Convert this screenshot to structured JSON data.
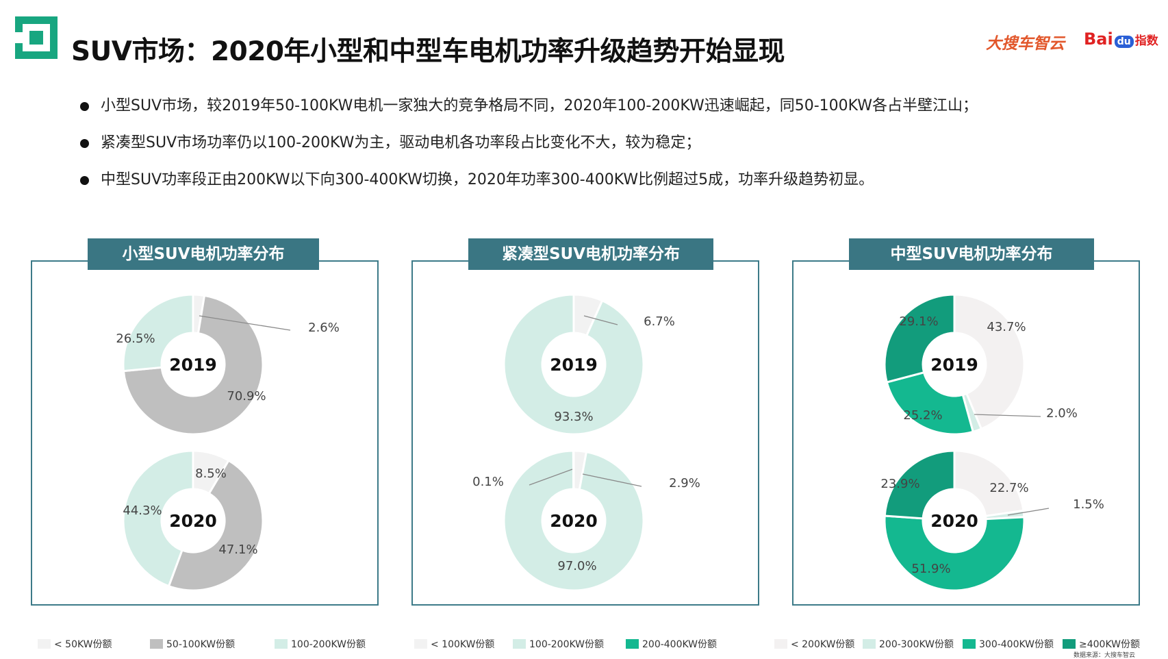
{
  "header": {
    "title": "SUV市场：2020年小型和中型车电机功率升级趋势开始显现",
    "brand_souche": "大搜车智云",
    "brand_baidu": {
      "bai": "Bai",
      "du": "du",
      "zs": "指数"
    }
  },
  "bullets": [
    "小型SUV市场，较2019年50-100KW电机一家独大的竞争格局不同，2020年100-200KW迅速崛起，同50-100KW各占半壁江山；",
    "紧凑型SUV市场功率仍以100-200KW为主，驱动电机各功率段占比变化不大，较为稳定；",
    "中型SUV功率段正由200KW以下向300-400KW切换，2020年功率300-400KW比例超过5成，功率升级趋势初显。"
  ],
  "colors": {
    "panel_border": "#3c7a88",
    "panel_title_bg": "#3a7683",
    "title_text": "#111111",
    "logo_green": "#18a680",
    "brand_orange": "#e2572b",
    "brand_red": "#e02222",
    "brand_blue": "#2a5fd6"
  },
  "chart_data": [
    {
      "type": "pie",
      "title": "小型SUV电机功率分布",
      "series": [
        {
          "name": "2019",
          "values": [
            2.6,
            70.9,
            26.5
          ],
          "labels": [
            "2.6%",
            "70.9%",
            "26.5%"
          ]
        },
        {
          "name": "2020",
          "values": [
            8.5,
            47.1,
            44.3
          ],
          "labels": [
            "8.5%",
            "47.1%",
            "44.3%"
          ]
        }
      ],
      "legend": [
        {
          "name": "< 50KW份额",
          "color": "#f2f2f2"
        },
        {
          "name": "50-100KW份额",
          "color": "#bfbfbf"
        },
        {
          "name": "100-200KW份额",
          "color": "#d3ede6"
        }
      ],
      "legend_position": "bottom"
    },
    {
      "type": "pie",
      "title": "紧凑型SUV电机功率分布",
      "series": [
        {
          "name": "2019",
          "values": [
            6.7,
            93.3,
            0
          ],
          "labels": [
            "6.7%",
            "93.3%",
            ""
          ]
        },
        {
          "name": "2020",
          "values": [
            2.9,
            97.0,
            0.1
          ],
          "labels": [
            "2.9%",
            "97.0%",
            "0.1%"
          ]
        }
      ],
      "legend": [
        {
          "name": "< 100KW份额",
          "color": "#f2f2f2"
        },
        {
          "name": "100-200KW份额",
          "color": "#d3ede6"
        },
        {
          "name": "200-400KW份额",
          "color": "#14b890"
        }
      ],
      "legend_position": "bottom"
    },
    {
      "type": "pie",
      "title": "中型SUV电机功率分布",
      "series": [
        {
          "name": "2019",
          "values": [
            43.7,
            2.0,
            25.2,
            29.1
          ],
          "labels": [
            "43.7%",
            "2.0%",
            "25.2%",
            "29.1%"
          ]
        },
        {
          "name": "2020",
          "values": [
            22.7,
            1.5,
            51.9,
            23.9
          ],
          "labels": [
            "22.7%",
            "1.5%",
            "51.9%",
            "23.9%"
          ]
        }
      ],
      "legend": [
        {
          "name": "< 200KW份额",
          "color": "#f3f1f1"
        },
        {
          "name": "200-300KW份额",
          "color": "#d3ede6"
        },
        {
          "name": "300-400KW份额",
          "color": "#14b890"
        },
        {
          "name": "≥400KW份额",
          "color": "#129c7c"
        }
      ],
      "legend_position": "bottom"
    }
  ],
  "source_note": "数据来源：大搜车智云"
}
